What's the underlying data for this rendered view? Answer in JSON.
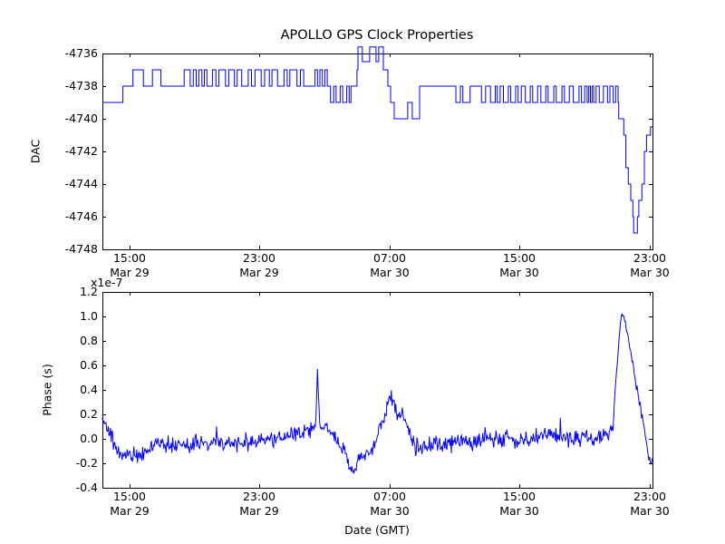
{
  "figure": {
    "title": "APOLLO GPS Clock Properties",
    "background": "#ffffff",
    "axis_color": "#000000",
    "line_color": "#0000ff"
  },
  "chart_data": [
    {
      "type": "line",
      "subtype": "step-post",
      "panel": "top",
      "ylabel": "DAC",
      "ylim": [
        -4748,
        -4736
      ],
      "ytick_values": [
        -4736,
        -4738,
        -4740,
        -4742,
        -4744,
        -4746,
        -4748
      ],
      "ytick_labels": [
        "-4736",
        "-4738",
        "-4740",
        "-4742",
        "-4744",
        "-4746",
        "-4748"
      ],
      "xlim_hours": [
        13.33,
        47.17
      ],
      "xticks": [
        {
          "hour": 15,
          "time": "15:00",
          "date": "Mar 29"
        },
        {
          "hour": 23,
          "time": "23:00",
          "date": "Mar 29"
        },
        {
          "hour": 31,
          "time": "07:00",
          "date": "Mar 30"
        },
        {
          "hour": 39,
          "time": "15:00",
          "date": "Mar 30"
        },
        {
          "hour": 47,
          "time": "23:00",
          "date": "Mar 30"
        }
      ],
      "series": [
        {
          "name": "DAC",
          "color": "#0000ff",
          "end_hour": 47.17,
          "steps": [
            [
              13.33,
              -4739
            ],
            [
              14.59,
              -4738
            ],
            [
              15.21,
              -4737
            ],
            [
              15.85,
              -4738
            ],
            [
              16.41,
              -4737
            ],
            [
              16.93,
              -4738
            ],
            [
              18.36,
              -4737
            ],
            [
              18.73,
              -4738
            ],
            [
              18.92,
              -4737
            ],
            [
              19.1,
              -4738
            ],
            [
              19.26,
              -4737
            ],
            [
              19.45,
              -4738
            ],
            [
              19.6,
              -4737
            ],
            [
              19.76,
              -4738
            ],
            [
              20.1,
              -4737
            ],
            [
              20.31,
              -4738
            ],
            [
              20.5,
              -4737
            ],
            [
              20.9,
              -4738
            ],
            [
              21.1,
              -4737
            ],
            [
              21.45,
              -4738
            ],
            [
              21.62,
              -4737
            ],
            [
              21.9,
              -4738
            ],
            [
              22.3,
              -4737
            ],
            [
              22.5,
              -4738
            ],
            [
              22.72,
              -4737
            ],
            [
              23.1,
              -4738
            ],
            [
              23.31,
              -4737
            ],
            [
              23.6,
              -4738
            ],
            [
              23.76,
              -4737
            ],
            [
              24.1,
              -4738
            ],
            [
              24.5,
              -4737
            ],
            [
              24.7,
              -4738
            ],
            [
              24.86,
              -4737
            ],
            [
              25.3,
              -4738
            ],
            [
              25.51,
              -4737
            ],
            [
              25.71,
              -4738
            ],
            [
              26.41,
              -4737
            ],
            [
              26.56,
              -4738
            ],
            [
              26.71,
              -4737
            ],
            [
              26.86,
              -4738
            ],
            [
              27.01,
              -4737
            ],
            [
              27.16,
              -4738
            ],
            [
              27.36,
              -4739
            ],
            [
              27.56,
              -4738
            ],
            [
              27.71,
              -4739
            ],
            [
              27.96,
              -4738
            ],
            [
              28.11,
              -4739
            ],
            [
              28.36,
              -4738
            ],
            [
              28.51,
              -4739
            ],
            [
              28.62,
              -4738
            ],
            [
              28.99,
              -4737
            ],
            [
              29.05,
              -4735.6
            ],
            [
              29.32,
              -4736.5
            ],
            [
              29.77,
              -4735.6
            ],
            [
              30.16,
              -4736.5
            ],
            [
              30.33,
              -4735.6
            ],
            [
              30.61,
              -4737
            ],
            [
              30.89,
              -4738
            ],
            [
              31.06,
              -4739
            ],
            [
              31.28,
              -4740
            ],
            [
              32.11,
              -4739
            ],
            [
              32.39,
              -4740
            ],
            [
              32.84,
              -4738
            ],
            [
              35.07,
              -4739
            ],
            [
              35.35,
              -4738
            ],
            [
              35.5,
              -4739
            ],
            [
              35.95,
              -4738
            ],
            [
              36.65,
              -4739
            ],
            [
              36.9,
              -4738
            ],
            [
              37.2,
              -4739
            ],
            [
              37.5,
              -4738
            ],
            [
              37.62,
              -4739
            ],
            [
              37.8,
              -4738
            ],
            [
              38.0,
              -4739
            ],
            [
              38.3,
              -4738
            ],
            [
              38.45,
              -4739
            ],
            [
              38.75,
              -4738
            ],
            [
              38.9,
              -4739
            ],
            [
              39.1,
              -4738
            ],
            [
              39.35,
              -4739
            ],
            [
              39.65,
              -4738
            ],
            [
              39.8,
              -4739
            ],
            [
              40.1,
              -4738
            ],
            [
              40.3,
              -4739
            ],
            [
              40.6,
              -4738
            ],
            [
              40.75,
              -4739
            ],
            [
              41.1,
              -4738
            ],
            [
              41.25,
              -4739
            ],
            [
              41.6,
              -4738
            ],
            [
              41.75,
              -4739
            ],
            [
              42.05,
              -4738
            ],
            [
              42.3,
              -4739
            ],
            [
              42.65,
              -4738
            ],
            [
              42.8,
              -4739
            ],
            [
              43.0,
              -4738
            ],
            [
              43.15,
              -4739
            ],
            [
              43.25,
              -4738
            ],
            [
              43.35,
              -4739
            ],
            [
              43.45,
              -4738
            ],
            [
              43.55,
              -4739
            ],
            [
              43.7,
              -4738
            ],
            [
              43.9,
              -4739
            ],
            [
              44.15,
              -4738
            ],
            [
              44.4,
              -4739
            ],
            [
              44.55,
              -4738
            ],
            [
              44.75,
              -4739
            ],
            [
              44.9,
              -4738
            ],
            [
              45.05,
              -4739
            ],
            [
              45.09,
              -4740
            ],
            [
              45.4,
              -4741
            ],
            [
              45.53,
              -4743
            ],
            [
              45.68,
              -4744
            ],
            [
              45.83,
              -4745
            ],
            [
              45.96,
              -4746
            ],
            [
              46.01,
              -4747
            ],
            [
              46.24,
              -4746
            ],
            [
              46.33,
              -4745
            ],
            [
              46.52,
              -4744
            ],
            [
              46.67,
              -4742
            ],
            [
              46.8,
              -4741
            ],
            [
              47.05,
              -4740.5
            ]
          ]
        }
      ]
    },
    {
      "type": "line",
      "subtype": "noisy",
      "panel": "bottom",
      "ylabel": "Phase (s)",
      "xlabel": "Date (GMT)",
      "offset_text": "x1e-7",
      "ylim": [
        -0.4,
        1.2
      ],
      "ytick_values": [
        1.2,
        1.0,
        0.8,
        0.6,
        0.4,
        0.2,
        0.0,
        -0.2,
        -0.4
      ],
      "ytick_labels": [
        "1.2",
        "1.0",
        "0.8",
        "0.6",
        "0.4",
        "0.2",
        "0.0",
        "-0.2",
        "-0.4"
      ],
      "xlim_hours": [
        13.33,
        47.17
      ],
      "xticks": [
        {
          "hour": 15,
          "time": "15:00",
          "date": "Mar 29"
        },
        {
          "hour": 23,
          "time": "23:00",
          "date": "Mar 29"
        },
        {
          "hour": 31,
          "time": "07:00",
          "date": "Mar 30"
        },
        {
          "hour": 39,
          "time": "15:00",
          "date": "Mar 30"
        },
        {
          "hour": 47,
          "time": "23:00",
          "date": "Mar 30"
        }
      ],
      "series": [
        {
          "name": "Phase",
          "color": "#0000ff",
          "units": "1e-7 s",
          "noise_seed": 42,
          "anchors": [
            [
              13.33,
              0.15,
              0.04
            ],
            [
              13.6,
              0.13,
              0.05
            ],
            [
              13.9,
              0.02,
              0.05
            ],
            [
              14.2,
              -0.1,
              0.05
            ],
            [
              14.5,
              -0.15,
              0.06
            ],
            [
              14.9,
              -0.1,
              0.05
            ],
            [
              15.2,
              -0.13,
              0.06
            ],
            [
              15.6,
              -0.16,
              0.05
            ],
            [
              15.9,
              -0.1,
              0.05
            ],
            [
              16.3,
              -0.05,
              0.05
            ],
            [
              16.8,
              -0.06,
              0.05
            ],
            [
              17.3,
              -0.04,
              0.06
            ],
            [
              17.8,
              -0.06,
              0.05
            ],
            [
              18.3,
              -0.05,
              0.05
            ],
            [
              18.8,
              -0.06,
              0.06
            ],
            [
              19.3,
              -0.04,
              0.05
            ],
            [
              19.8,
              -0.05,
              0.05
            ],
            [
              20.3,
              -0.04,
              0.05
            ],
            [
              20.8,
              -0.03,
              0.05
            ],
            [
              21.3,
              -0.04,
              0.05
            ],
            [
              21.8,
              -0.02,
              0.05
            ],
            [
              22.3,
              -0.03,
              0.05
            ],
            [
              22.8,
              -0.02,
              0.05
            ],
            [
              23.3,
              0.0,
              0.05
            ],
            [
              23.8,
              -0.01,
              0.05
            ],
            [
              24.3,
              0.0,
              0.05
            ],
            [
              24.8,
              0.02,
              0.05
            ],
            [
              25.3,
              0.03,
              0.05
            ],
            [
              25.8,
              0.06,
              0.05
            ],
            [
              26.2,
              0.09,
              0.05
            ],
            [
              26.45,
              0.12,
              0.04
            ],
            [
              26.55,
              0.58,
              0.02
            ],
            [
              26.7,
              0.12,
              0.04
            ],
            [
              27.0,
              0.1,
              0.05
            ],
            [
              27.4,
              0.05,
              0.05
            ],
            [
              27.8,
              0.0,
              0.05
            ],
            [
              28.2,
              -0.08,
              0.05
            ],
            [
              28.55,
              -0.25,
              0.04
            ],
            [
              28.8,
              -0.28,
              0.04
            ],
            [
              29.1,
              -0.15,
              0.05
            ],
            [
              29.5,
              -0.12,
              0.05
            ],
            [
              29.9,
              -0.1,
              0.05
            ],
            [
              30.3,
              0.05,
              0.05
            ],
            [
              30.7,
              0.2,
              0.05
            ],
            [
              31.0,
              0.33,
              0.05
            ],
            [
              31.3,
              0.28,
              0.07
            ],
            [
              31.6,
              0.22,
              0.06
            ],
            [
              31.9,
              0.16,
              0.06
            ],
            [
              32.2,
              0.05,
              0.06
            ],
            [
              32.5,
              -0.05,
              0.06
            ],
            [
              32.8,
              -0.08,
              0.05
            ],
            [
              33.2,
              -0.05,
              0.05
            ],
            [
              33.6,
              -0.03,
              0.05
            ],
            [
              34.1,
              -0.04,
              0.05
            ],
            [
              34.6,
              -0.03,
              0.05
            ],
            [
              35.1,
              -0.02,
              0.05
            ],
            [
              35.6,
              -0.03,
              0.05
            ],
            [
              36.1,
              -0.02,
              0.05
            ],
            [
              36.6,
              -0.01,
              0.05
            ],
            [
              37.1,
              -0.02,
              0.05
            ],
            [
              37.6,
              0.0,
              0.05
            ],
            [
              38.1,
              0.01,
              0.05
            ],
            [
              38.6,
              0.0,
              0.05
            ],
            [
              39.1,
              -0.01,
              0.05
            ],
            [
              39.6,
              0.0,
              0.05
            ],
            [
              40.1,
              0.02,
              0.05
            ],
            [
              40.6,
              0.03,
              0.05
            ],
            [
              41.1,
              0.04,
              0.05
            ],
            [
              41.6,
              0.02,
              0.05
            ],
            [
              42.1,
              0.0,
              0.05
            ],
            [
              42.6,
              0.01,
              0.05
            ],
            [
              43.1,
              0.02,
              0.05
            ],
            [
              43.6,
              0.0,
              0.05
            ],
            [
              44.1,
              0.02,
              0.05
            ],
            [
              44.5,
              0.04,
              0.04
            ],
            [
              44.75,
              0.1,
              0.03
            ],
            [
              44.9,
              0.45,
              0.02
            ],
            [
              45.1,
              0.8,
              0.02
            ],
            [
              45.25,
              1.0,
              0.015
            ],
            [
              45.35,
              1.02,
              0.015
            ],
            [
              45.5,
              0.95,
              0.02
            ],
            [
              45.7,
              0.8,
              0.02
            ],
            [
              45.9,
              0.65,
              0.02
            ],
            [
              46.1,
              0.5,
              0.03
            ],
            [
              46.3,
              0.35,
              0.03
            ],
            [
              46.5,
              0.2,
              0.03
            ],
            [
              46.7,
              0.05,
              0.03
            ],
            [
              46.9,
              -0.1,
              0.03
            ],
            [
              47.05,
              -0.2,
              0.03
            ],
            [
              47.17,
              -0.17,
              0.03
            ]
          ]
        }
      ]
    }
  ]
}
